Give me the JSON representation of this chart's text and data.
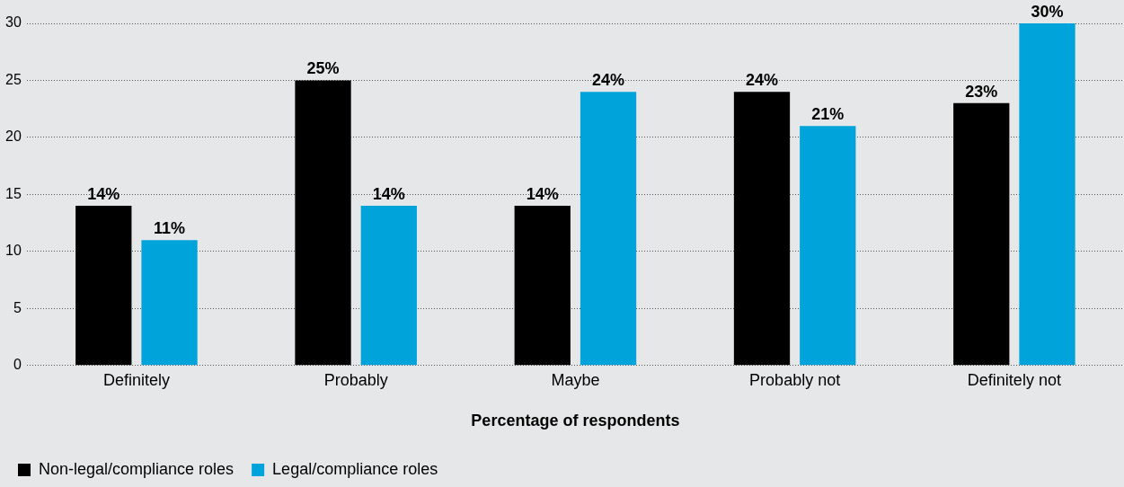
{
  "chart_data": {
    "type": "bar",
    "xlabel": "Percentage of respondents",
    "categories": [
      "Definitely",
      "Probably",
      "Maybe",
      "Probably not",
      "Definitely not"
    ],
    "series": [
      {
        "name": "Non-legal/compliance roles",
        "color": "#000000",
        "values": [
          14,
          25,
          14,
          24,
          23
        ],
        "value_labels": [
          "14%",
          "25%",
          "14%",
          "24%",
          "23%"
        ]
      },
      {
        "name": "Legal/compliance roles",
        "color": "#00a3da",
        "values": [
          11,
          14,
          24,
          21,
          30
        ],
        "value_labels": [
          "11%",
          "14%",
          "24%",
          "21%",
          "30%"
        ]
      }
    ],
    "ylim": [
      0,
      30
    ],
    "yticks": [
      0,
      5,
      10,
      15,
      20,
      25,
      30
    ],
    "grid": "y",
    "legend": "bottom left"
  }
}
